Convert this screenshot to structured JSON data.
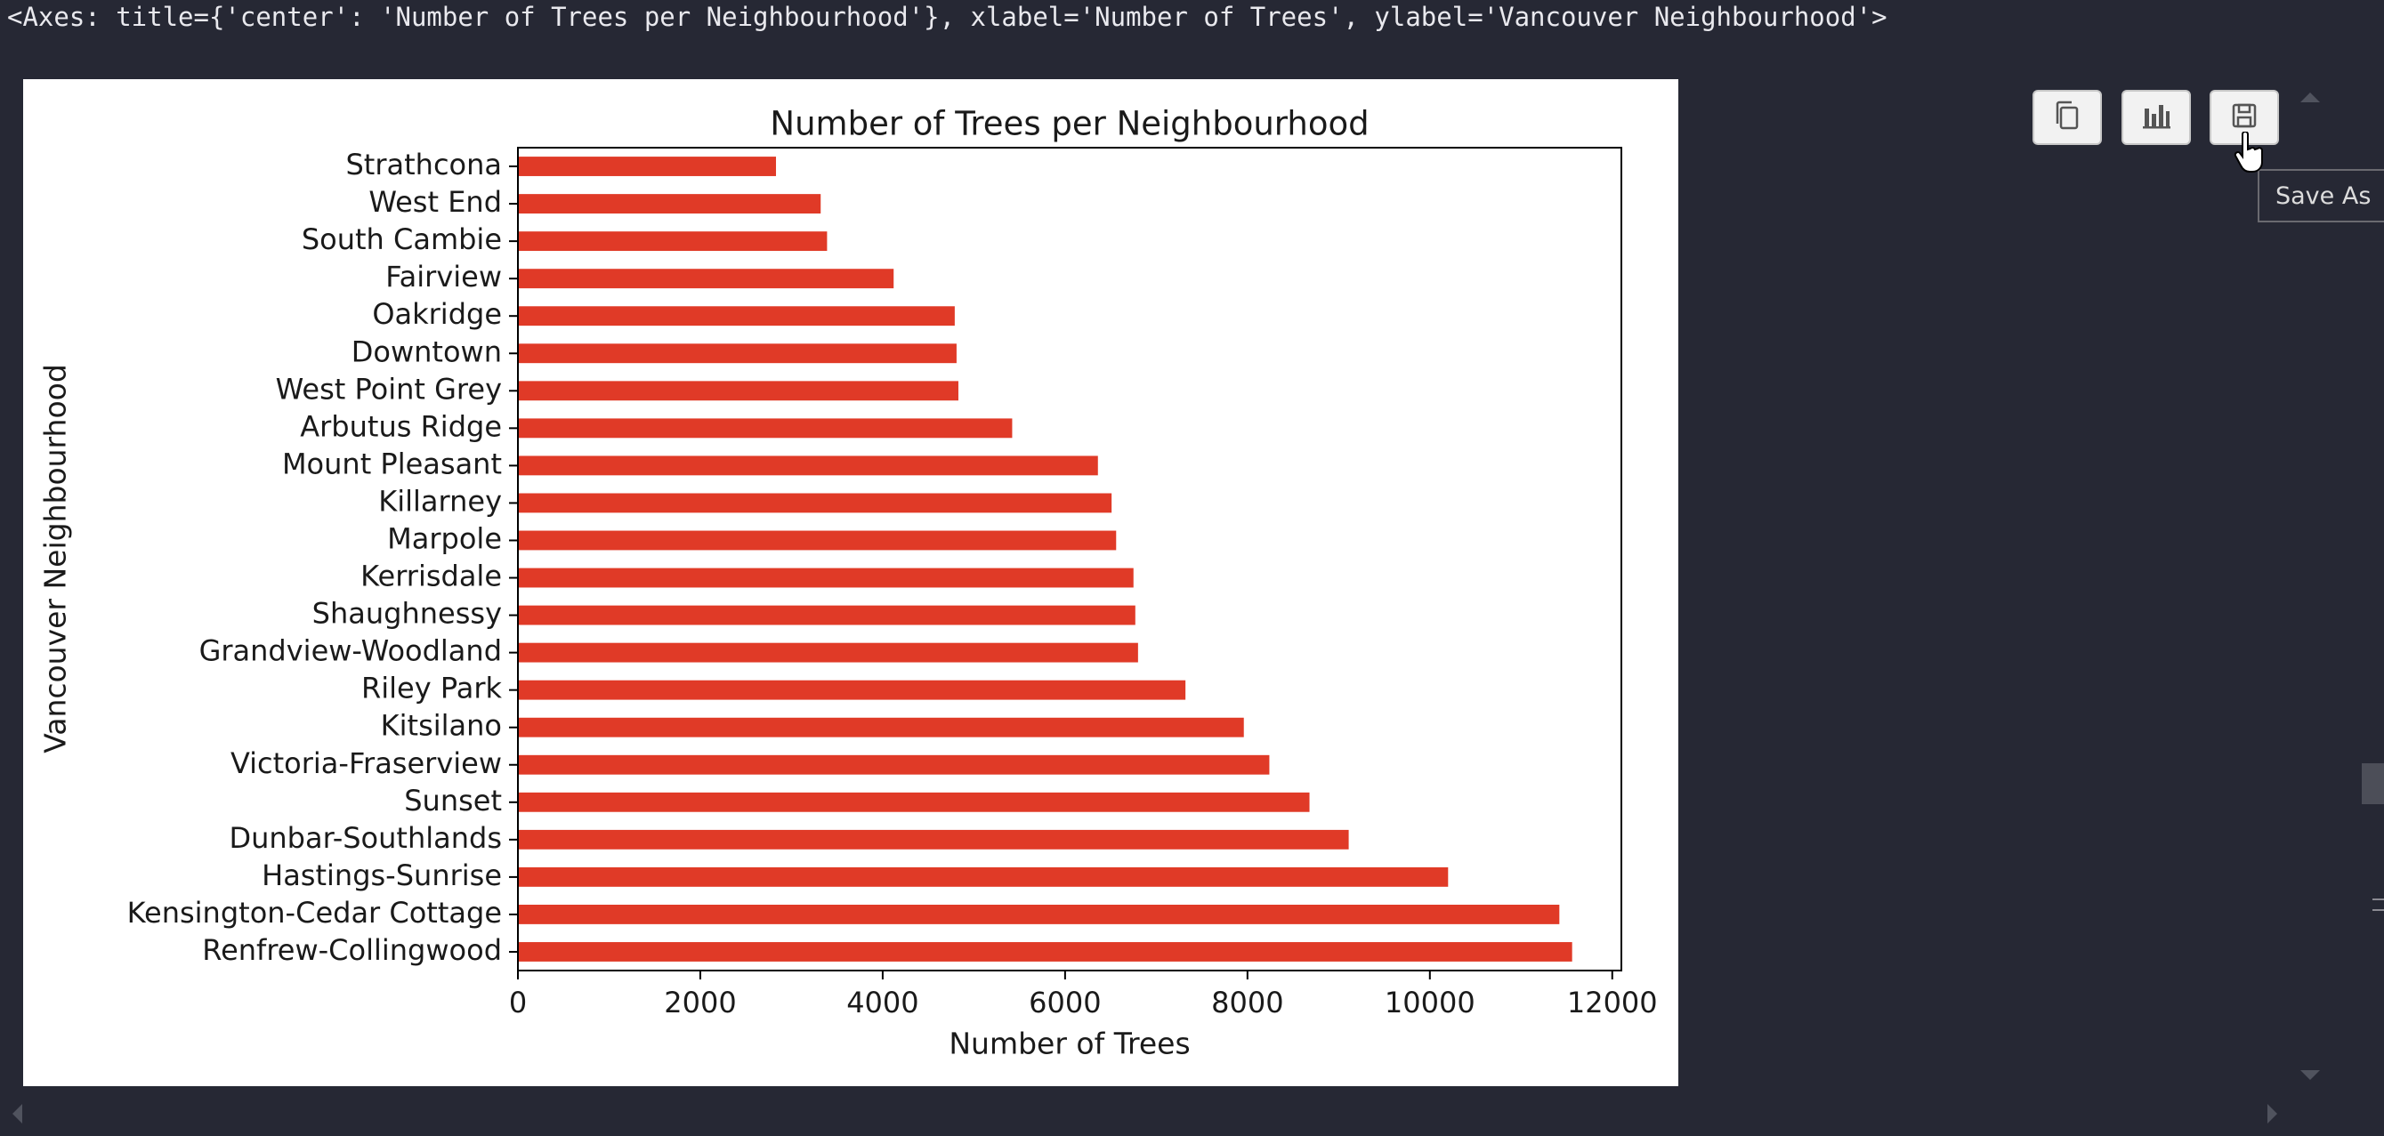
{
  "output_text": "<Axes: title={'center': 'Number of Trees per Neighbourhood'}, xlabel='Number of Trees', ylabel='Vancouver Neighbourhood'>",
  "toolbar": {
    "copy_icon": "copy-icon",
    "chart_icon": "bar-chart-icon",
    "save_icon": "floppy-disk-icon",
    "tooltip": "Save As"
  },
  "colors": {
    "background": "#262834",
    "bar": "#e03a27"
  },
  "chart_data": {
    "type": "bar",
    "orientation": "horizontal",
    "title": "Number of Trees per Neighbourhood",
    "xlabel": "Number of Trees",
    "ylabel": "Vancouver Neighbourhood",
    "xlim": [
      0,
      12100
    ],
    "xticks": [
      0,
      2000,
      4000,
      6000,
      8000,
      10000,
      12000
    ],
    "xtick_labels": [
      "0",
      "2000",
      "4000",
      "6000",
      "8000",
      "10000",
      "12000"
    ],
    "grid": false,
    "categories": [
      "Strathcona",
      "West End",
      "South Cambie",
      "Fairview",
      "Oakridge",
      "Downtown",
      "West Point Grey",
      "Arbutus Ridge",
      "Mount Pleasant",
      "Killarney",
      "Marpole",
      "Kerrisdale",
      "Shaughnessy",
      "Grandview-Woodland",
      "Riley Park",
      "Kitsilano",
      "Victoria-Fraserview",
      "Sunset",
      "Dunbar-Southlands",
      "Hastings-Sunrise",
      "Kensington-Cedar Cottage",
      "Renfrew-Collingwood"
    ],
    "values": [
      2830,
      3320,
      3390,
      4120,
      4790,
      4810,
      4830,
      5420,
      6360,
      6510,
      6560,
      6750,
      6770,
      6800,
      7320,
      7960,
      8240,
      8680,
      9110,
      10200,
      11420,
      11560
    ]
  }
}
